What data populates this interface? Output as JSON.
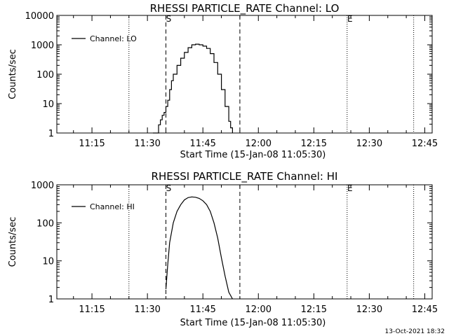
{
  "footer": {
    "timestamp": "13-Oct-2021 18:32"
  },
  "chart_data": [
    {
      "type": "line",
      "title": "RHESSI PARTICLE_RATE Channel: LO",
      "xlabel": "Start Time (15-Jan-08 11:05:30)",
      "ylabel": "Counts/sec",
      "y_scale": "log",
      "xlim": [
        "11:05:30",
        "12:47:00"
      ],
      "ylim": [
        1,
        10000
      ],
      "xticks": [
        "11:15",
        "11:30",
        "11:45",
        "12:00",
        "12:15",
        "12:30",
        "12:45"
      ],
      "yticks": [
        {
          "value": 1,
          "label": "1"
        },
        {
          "value": 10,
          "label": "10"
        },
        {
          "value": 100,
          "label": "100"
        },
        {
          "value": 1000,
          "label": "1000"
        },
        {
          "value": 10000,
          "label": "10000"
        }
      ],
      "legend": {
        "position": "top-left",
        "entries": [
          "Channel: LO"
        ]
      },
      "markers": [
        {
          "time": "11:25:00",
          "style": "dotted",
          "label": ""
        },
        {
          "time": "11:35:00",
          "style": "dashed",
          "label": "S"
        },
        {
          "time": "11:55:00",
          "style": "dashed",
          "label": ""
        },
        {
          "time": "12:24:00",
          "style": "dotted",
          "label": "E"
        },
        {
          "time": "12:42:00",
          "style": "dotted",
          "label": ""
        }
      ],
      "series": [
        {
          "name": "Channel: LO",
          "step": true,
          "x": [
            "11:31:30",
            "11:33:00",
            "11:33:30",
            "11:34:00",
            "11:34:30",
            "11:35:00",
            "11:35:30",
            "11:36:00",
            "11:36:30",
            "11:37:00",
            "11:38:00",
            "11:39:00",
            "11:40:00",
            "11:41:00",
            "11:42:00",
            "11:43:00",
            "11:44:00",
            "11:45:00",
            "11:46:00",
            "11:47:00",
            "11:48:00",
            "11:49:00",
            "11:50:00",
            "11:51:00",
            "11:52:00",
            "11:52:30",
            "11:53:00"
          ],
          "y": [
            1,
            1.9,
            2.8,
            4,
            5,
            8,
            13,
            30,
            60,
            100,
            200,
            350,
            550,
            800,
            1000,
            1050,
            1000,
            900,
            750,
            500,
            250,
            100,
            30,
            8,
            2.5,
            1.5,
            1
          ]
        }
      ]
    },
    {
      "type": "line",
      "title": "RHESSI PARTICLE_RATE Channel: HI",
      "xlabel": "Start Time (15-Jan-08 11:05:30)",
      "ylabel": "Counts/sec",
      "y_scale": "log",
      "xlim": [
        "11:05:30",
        "12:47:00"
      ],
      "ylim": [
        1,
        1000
      ],
      "xticks": [
        "11:15",
        "11:30",
        "11:45",
        "12:00",
        "12:15",
        "12:30",
        "12:45"
      ],
      "yticks": [
        {
          "value": 1,
          "label": "1"
        },
        {
          "value": 10,
          "label": "10"
        },
        {
          "value": 100,
          "label": "100"
        },
        {
          "value": 1000,
          "label": "1000"
        }
      ],
      "legend": {
        "position": "top-left",
        "entries": [
          "Channel: HI"
        ]
      },
      "markers": [
        {
          "time": "11:25:00",
          "style": "dotted",
          "label": ""
        },
        {
          "time": "11:35:00",
          "style": "dashed",
          "label": "S"
        },
        {
          "time": "11:55:00",
          "style": "dashed",
          "label": ""
        },
        {
          "time": "12:24:00",
          "style": "dotted",
          "label": "E"
        },
        {
          "time": "12:42:00",
          "style": "dotted",
          "label": ""
        }
      ],
      "series": [
        {
          "name": "Channel: HI",
          "step": false,
          "x": [
            "11:35:00",
            "11:35:30",
            "11:36:00",
            "11:37:00",
            "11:38:00",
            "11:39:00",
            "11:40:00",
            "11:41:00",
            "11:42:00",
            "11:43:00",
            "11:44:00",
            "11:45:00",
            "11:46:00",
            "11:47:00",
            "11:48:00",
            "11:49:00",
            "11:50:00",
            "11:51:00",
            "11:52:00",
            "11:53:00"
          ],
          "y": [
            1.8,
            8,
            30,
            100,
            200,
            300,
            400,
            460,
            480,
            470,
            440,
            380,
            300,
            200,
            100,
            40,
            12,
            4,
            1.5,
            1
          ]
        }
      ]
    }
  ]
}
